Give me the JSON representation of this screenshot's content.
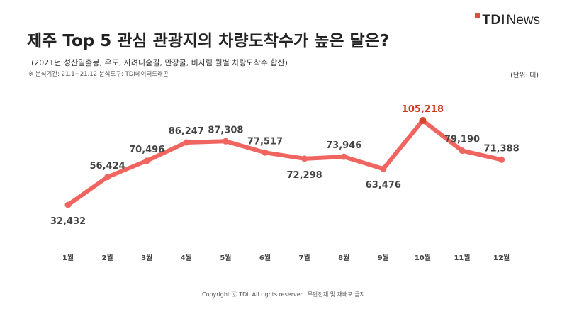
{
  "brand": {
    "logo_tdi": "TDI",
    "logo_news": "News"
  },
  "header": {
    "title": "제주 Top 5 관심 관광지의  차량도착수가 높은 달은?",
    "subtitle": "(2021년 성산일출봉, 우도, 사려니숲길, 만장굴, 비자림 월별 차량도착수 합산)",
    "note": "※ 분석기간: 21.1~21.12  분석도구: TDI데이터드래곤",
    "unit": "(단위: 대)"
  },
  "footer": {
    "copyright": "Copyright ⓒ TDI. All rights reserved. 무단전재 및 재배포 금지"
  },
  "colors": {
    "line": "#f06560",
    "peak_point": "#d6452a",
    "peak_label": "#c73a1c",
    "label": "#444444"
  },
  "chart_data": {
    "type": "line",
    "title": "제주 Top 5 관심 관광지의  차량도착수가 높은 달은?",
    "categories": [
      "1월",
      "2월",
      "3월",
      "4월",
      "5월",
      "6월",
      "7월",
      "8월",
      "9월",
      "10월",
      "11월",
      "12월"
    ],
    "values": [
      32432,
      56424,
      70496,
      86247,
      87308,
      77517,
      72298,
      73946,
      63476,
      105218,
      79190,
      71388
    ],
    "value_labels": [
      "32,432",
      "56,424",
      "70,496",
      "86,247",
      "87,308",
      "77,517",
      "72,298",
      "73,946",
      "63,476",
      "105,218",
      "79,190",
      "71,388"
    ],
    "highlight_index": 9,
    "ylim": [
      25000,
      110000
    ],
    "grid": false,
    "legend": "none"
  }
}
